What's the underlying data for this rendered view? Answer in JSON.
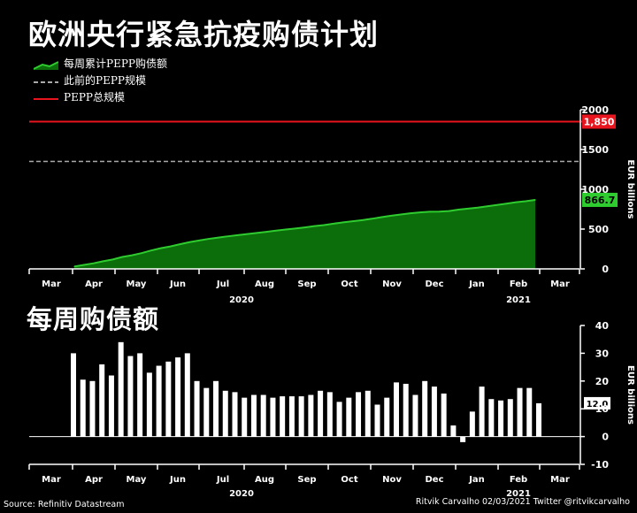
{
  "title": "欧洲央行紧急抗疫购债计划",
  "subtitle": "每周购债额",
  "legend": [
    {
      "label": "每周累计PEPP购债额",
      "color": "#2ecc2e",
      "style": "area"
    },
    {
      "label": "此前的PEPP规模",
      "color": "#aaaaaa",
      "style": "dashed"
    },
    {
      "label": "PEPP总规模",
      "color": "#e8141e",
      "style": "solid"
    }
  ],
  "source": "Source: Refinitiv Datastream",
  "credit": "Ritvik Carvalho 02/03/2021 Twitter @ritvikcarvalho",
  "colors": {
    "area_fill": "#0b6e0b",
    "area_line": "#2ecc2e",
    "bars": "#ffffff",
    "red": "#e8141e",
    "dashed": "#aaaaaa"
  },
  "chart_data": [
    {
      "type": "area",
      "ylabel": "EUR billions",
      "ylim": [
        0,
        2000
      ],
      "yticks": [
        "0",
        "500",
        "1000",
        "1500",
        "2000"
      ],
      "xtick_labels": [
        "Mar",
        "Apr",
        "May",
        "Jun",
        "Jul",
        "Aug",
        "Sep",
        "Oct",
        "Nov",
        "Dec",
        "Jan",
        "Feb",
        "Mar"
      ],
      "year_labels": [
        "2020",
        "2021"
      ],
      "reference_lines": [
        {
          "name": "PEPP总规模",
          "value": 1850,
          "label": "1,850"
        },
        {
          "name": "此前的PEPP规模",
          "value": 1350
        }
      ],
      "last_value_label": "866.7",
      "series": [
        {
          "name": "每周累计PEPP购债额",
          "values": [
            30,
            50,
            70,
            96,
            118,
            150,
            171,
            198,
            231,
            260,
            282,
            310,
            336,
            357,
            377,
            393,
            409,
            424,
            437,
            451,
            465,
            480,
            494,
            507,
            521,
            537,
            550,
            568,
            585,
            598,
            613,
            630,
            650,
            668,
            683,
            698,
            710,
            718,
            719,
            726,
            744,
            757,
            770,
            786,
            803,
            820,
            837,
            850,
            867
          ]
        }
      ]
    },
    {
      "type": "bar",
      "ylabel": "EUR billions",
      "ylim": [
        -10,
        40
      ],
      "yticks": [
        "-10",
        "0",
        "10",
        "20",
        "30",
        "40"
      ],
      "xtick_labels": [
        "Mar",
        "Apr",
        "May",
        "Jun",
        "Jul",
        "Aug",
        "Sep",
        "Oct",
        "Nov",
        "Dec",
        "Jan",
        "Feb",
        "Mar"
      ],
      "year_labels": [
        "2020",
        "2021"
      ],
      "last_value_label": "12.0",
      "series": [
        {
          "name": "每周购债额",
          "values": [
            30,
            20.5,
            20,
            26,
            22,
            34,
            29,
            30,
            23,
            25.5,
            27,
            28.5,
            30,
            20,
            17.5,
            20,
            16.5,
            16,
            14,
            15,
            15,
            14,
            14.5,
            14.5,
            14.5,
            15,
            16.5,
            16,
            12.5,
            14,
            16,
            16.5,
            11.5,
            14,
            19.5,
            19,
            15,
            20,
            18,
            15.5,
            4,
            -2,
            9,
            18,
            13.5,
            13,
            13.5,
            17.5,
            17.5,
            12
          ]
        }
      ]
    }
  ]
}
